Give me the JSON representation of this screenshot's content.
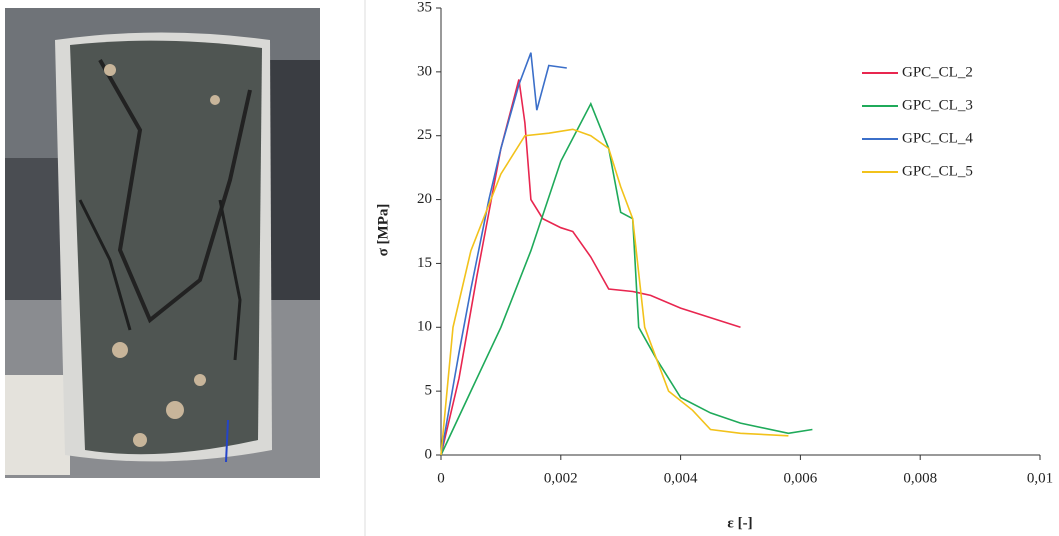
{
  "chart_data": {
    "type": "line",
    "xlabel": "ε [-]",
    "ylabel": "σ [MPa]",
    "xlim": [
      0,
      0.01
    ],
    "xticks": [
      0,
      {
        "value": 0.002,
        "label": "0,002"
      },
      {
        "value": 0.004,
        "label": "0,004"
      },
      {
        "value": 0.006,
        "label": "0,006"
      },
      {
        "value": 0.008,
        "label": "0,008"
      },
      {
        "value": 0.01,
        "label": "0,01"
      }
    ],
    "ylim": [
      0,
      35
    ],
    "yticks": [
      0,
      5,
      10,
      15,
      20,
      25,
      30,
      35
    ],
    "legend": "upper right",
    "series": [
      {
        "name": "GPC_CL_2",
        "color": "#e8264f",
        "x": [
          0,
          0.0003,
          0.0006,
          0.001,
          0.0013,
          0.0014,
          0.0015,
          0.0017,
          0.002,
          0.0022,
          0.0025,
          0.0028,
          0.0032,
          0.0035,
          0.004,
          0.005
        ],
        "values": [
          0,
          6,
          14,
          24,
          29.4,
          26,
          20,
          18.5,
          17.8,
          17.5,
          15.5,
          13,
          12.8,
          12.5,
          11.5,
          10
        ]
      },
      {
        "name": "GPC_CL_3",
        "color": "#1faa5a",
        "x": [
          0,
          0.0005,
          0.001,
          0.0015,
          0.002,
          0.0025,
          0.0028,
          0.003,
          0.0032,
          0.0033,
          0.0036,
          0.004,
          0.0045,
          0.005,
          0.0058,
          0.0062
        ],
        "values": [
          0,
          5,
          10,
          16,
          23,
          27.5,
          24,
          19,
          18.5,
          10,
          7.5,
          4.5,
          3.3,
          2.5,
          1.7,
          2
        ]
      },
      {
        "name": "GPC_CL_4",
        "color": "#3b6fc9",
        "x": [
          0,
          0.0003,
          0.0005,
          0.0008,
          0.001,
          0.0013,
          0.0015,
          0.0016,
          0.0018,
          0.0021
        ],
        "values": [
          0,
          8,
          13,
          20,
          24,
          29,
          31.5,
          27,
          30.5,
          30.3
        ]
      },
      {
        "name": "GPC_CL_5",
        "color": "#f2c21b",
        "x": [
          0,
          0.0002,
          0.0005,
          0.001,
          0.0014,
          0.0018,
          0.0022,
          0.0025,
          0.0028,
          0.003,
          0.0032,
          0.0034,
          0.0036,
          0.0038,
          0.0042,
          0.0045,
          0.005,
          0.0058
        ],
        "values": [
          0,
          10,
          16,
          22,
          25,
          25.2,
          25.5,
          25,
          24,
          21,
          18.5,
          10,
          7.5,
          5,
          3.5,
          2,
          1.7,
          1.5
        ]
      }
    ]
  }
}
